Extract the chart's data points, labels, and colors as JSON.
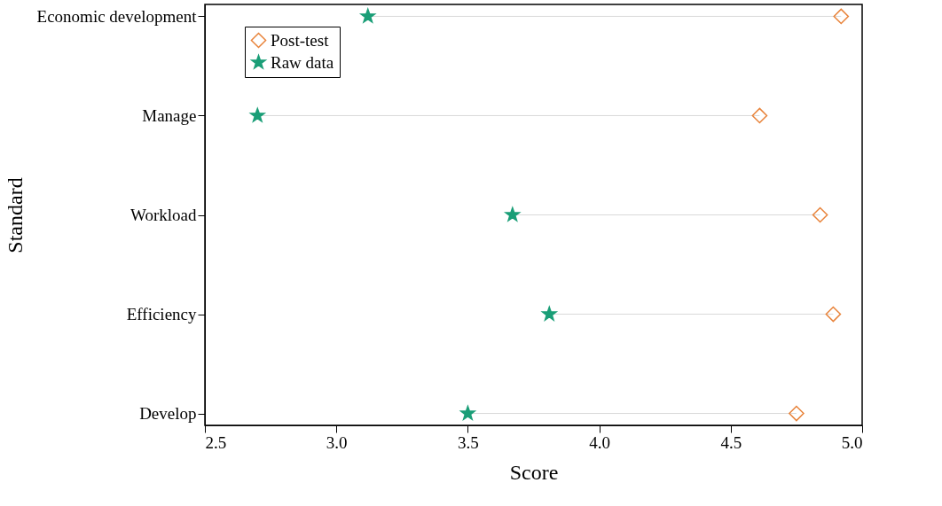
{
  "chart_data": {
    "type": "scatter",
    "orientation": "horizontal",
    "xlabel": "Score",
    "ylabel": "Standard",
    "categories": [
      "Economic development",
      "Manage",
      "Workload",
      "Efficiency",
      "Develop"
    ],
    "series": [
      {
        "name": "Post-test",
        "color": "#e8833a",
        "marker": "diamond",
        "values": [
          4.92,
          4.61,
          4.84,
          4.89,
          4.75
        ]
      },
      {
        "name": "Raw data",
        "color": "#1a9e77",
        "marker": "star",
        "values": [
          3.12,
          2.7,
          3.67,
          3.81,
          3.5
        ]
      }
    ],
    "xlim": [
      2.5,
      5.0
    ],
    "xticks": [
      {
        "value": 2.5,
        "label": "2.5"
      },
      {
        "value": 3.0,
        "label": "3.0"
      },
      {
        "value": 3.5,
        "label": "3.5"
      },
      {
        "value": 4.0,
        "label": "4.0"
      },
      {
        "value": 4.5,
        "label": "4.5"
      },
      {
        "value": 5.0,
        "label": "5.0"
      }
    ],
    "grid": false,
    "legend": "top left"
  }
}
